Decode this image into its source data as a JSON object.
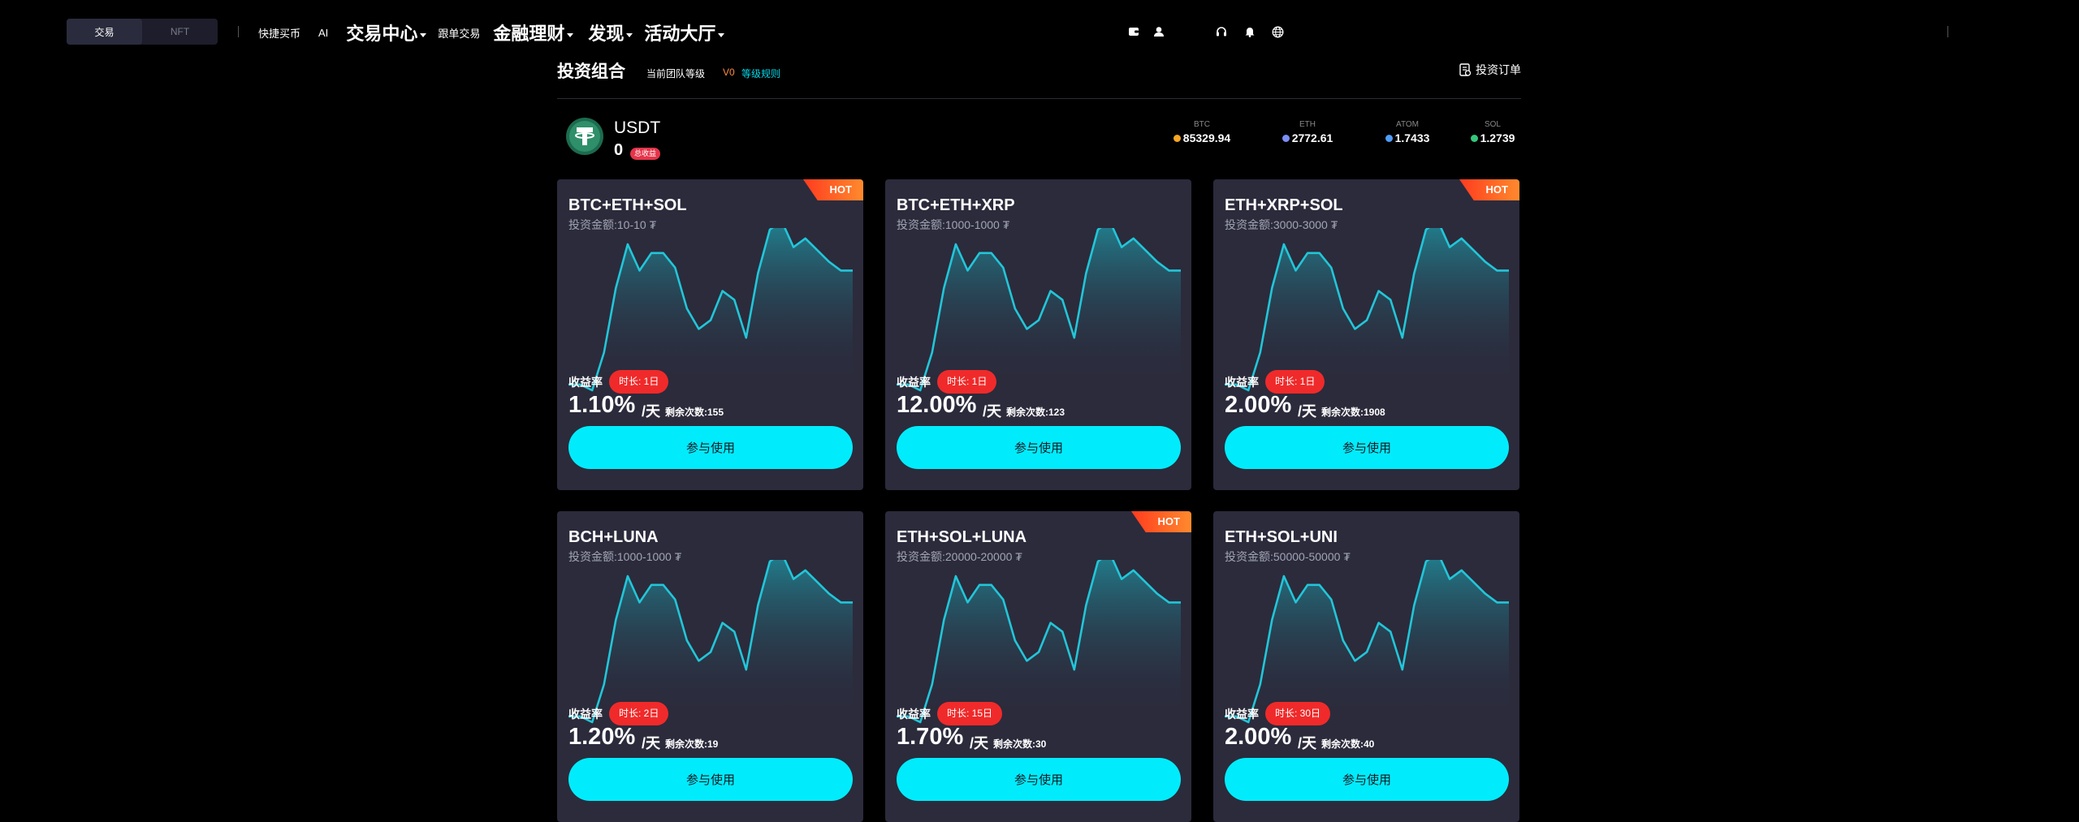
{
  "topnav": {
    "segment": {
      "tabs": [
        "交易",
        "NFT"
      ],
      "active": "交易"
    },
    "items": [
      {
        "label": "快捷买币",
        "size": "small",
        "dropdown": false
      },
      {
        "label": "AI",
        "size": "small",
        "dropdown": false
      },
      {
        "label": "交易中心",
        "size": "large",
        "dropdown": true
      },
      {
        "label": "跟单交易",
        "size": "small",
        "dropdown": false
      },
      {
        "label": "金融理财",
        "size": "large",
        "dropdown": true
      },
      {
        "label": "发现",
        "size": "large",
        "dropdown": true
      },
      {
        "label": "活动大厅",
        "size": "large",
        "dropdown": true
      }
    ],
    "right_icons": [
      "wallet-icon",
      "user-icon",
      "headset-icon",
      "bell-icon",
      "globe-icon"
    ]
  },
  "portfolio": {
    "title": "投资组合",
    "level_label": "当前团队等级",
    "level_value": "V0",
    "rules_link": "等级规则",
    "orders_link": "投资订单"
  },
  "usdt": {
    "name": "USDT",
    "balance": "0",
    "badge": "总收益"
  },
  "tickers": [
    {
      "symbol": "BTC",
      "price": "85329.94",
      "color": "#f5a623"
    },
    {
      "symbol": "ETH",
      "price": "2772.61",
      "color": "#7b8ff7"
    },
    {
      "symbol": "ATOM",
      "price": "1.7433",
      "color": "#4f9cf7"
    },
    {
      "symbol": "SOL",
      "price": "1.2739",
      "color": "#34c77b"
    }
  ],
  "colors": {
    "accent": "#00ecfc",
    "hot": "#ff5a1f",
    "duration_badge": "#f02a2a",
    "card_bg": "#2b2b3c",
    "chart_line": "#22c6d8"
  },
  "sparkline_values": [
    2,
    2,
    0,
    13,
    35,
    50,
    41,
    47,
    47,
    42,
    28,
    21,
    24,
    34,
    31,
    18,
    40,
    55,
    58,
    49,
    52,
    48,
    44,
    41,
    41
  ],
  "cards": [
    {
      "title": "BTC+ETH+SOL",
      "amount": "投资金额:10-10 ₮",
      "hot": true,
      "hot_label": "HOT",
      "rate_label": "收益率",
      "duration": "时长: 1日",
      "rate": "1.10%",
      "unit": "/天",
      "remaining": "剩余次数:155",
      "button": "参与使用"
    },
    {
      "title": "BTC+ETH+XRP",
      "amount": "投资金额:1000-1000 ₮",
      "hot": false,
      "hot_label": "",
      "rate_label": "收益率",
      "duration": "时长: 1日",
      "rate": "12.00%",
      "unit": "/天",
      "remaining": "剩余次数:123",
      "button": "参与使用"
    },
    {
      "title": "ETH+XRP+SOL",
      "amount": "投资金额:3000-3000 ₮",
      "hot": true,
      "hot_label": "HOT",
      "rate_label": "收益率",
      "duration": "时长: 1日",
      "rate": "2.00%",
      "unit": "/天",
      "remaining": "剩余次数:1908",
      "button": "参与使用"
    },
    {
      "title": "BCH+LUNA",
      "amount": "投资金额:1000-1000 ₮",
      "hot": false,
      "hot_label": "",
      "rate_label": "收益率",
      "duration": "时长: 2日",
      "rate": "1.20%",
      "unit": "/天",
      "remaining": "剩余次数:19",
      "button": "参与使用"
    },
    {
      "title": "ETH+SOL+LUNA",
      "amount": "投资金额:20000-20000 ₮",
      "hot": true,
      "hot_label": "HOT",
      "rate_label": "收益率",
      "duration": "时长: 15日",
      "rate": "1.70%",
      "unit": "/天",
      "remaining": "剩余次数:30",
      "button": "参与使用"
    },
    {
      "title": "ETH+SOL+UNI",
      "amount": "投资金额:50000-50000 ₮",
      "hot": false,
      "hot_label": "",
      "rate_label": "收益率",
      "duration": "时长: 30日",
      "rate": "2.00%",
      "unit": "/天",
      "remaining": "剩余次数:40",
      "button": "参与使用"
    }
  ]
}
